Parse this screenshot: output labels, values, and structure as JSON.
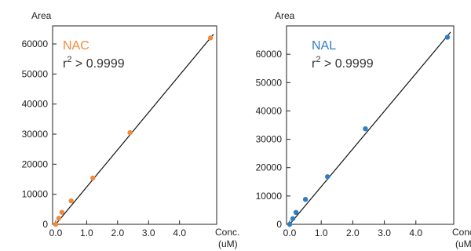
{
  "chart_data": [
    {
      "type": "scatter",
      "title": "",
      "xlabel": "Conc.",
      "xunit": "(uM)",
      "ylabel": "Area",
      "xlim": [
        -0.1,
        5.2
      ],
      "ylim": [
        0,
        66000
      ],
      "xticks": [
        "0.0",
        "1.0",
        "2.0",
        "3.0",
        "4.0"
      ],
      "xtick_values": [
        0,
        1,
        2,
        3,
        4
      ],
      "yticks": [
        "0",
        "10000",
        "20000",
        "30000",
        "40000",
        "50000",
        "60000"
      ],
      "ytick_values": [
        0,
        10000,
        20000,
        30000,
        40000,
        50000,
        60000
      ],
      "grid": false,
      "fit_line": {
        "slope": 12400,
        "intercept": 0,
        "x_range": [
          0,
          5.0
        ]
      },
      "annotation_label": "NAC",
      "annotation_r2_base": "r",
      "annotation_r2_sup": "2",
      "annotation_r2_rest": " > 0.9999",
      "series": [
        {
          "color": "#f08a3c",
          "x": [
            0.0,
            0.1,
            0.2,
            0.5,
            1.2,
            2.4,
            5.0
          ],
          "y": [
            0,
            2000,
            4000,
            7800,
            15400,
            30500,
            62000
          ]
        }
      ]
    },
    {
      "type": "scatter",
      "title": "",
      "xlabel": "Conc.",
      "xunit": "(uM)",
      "ylabel": "Area",
      "xlim": [
        -0.1,
        5.2
      ],
      "ylim": [
        0,
        70000
      ],
      "xticks": [
        "0.0",
        "1.0",
        "2.0",
        "3.0",
        "4.0"
      ],
      "xtick_values": [
        0,
        1,
        2,
        3,
        4
      ],
      "yticks": [
        "0",
        "10000",
        "20000",
        "30000",
        "40000",
        "50000",
        "60000"
      ],
      "ytick_values": [
        0,
        10000,
        20000,
        30000,
        40000,
        50000,
        60000
      ],
      "grid": false,
      "fit_line": {
        "slope": 13300,
        "intercept": 0,
        "x_range": [
          0,
          5.0
        ]
      },
      "annotation_label": "NAL",
      "annotation_r2_base": "r",
      "annotation_r2_sup": "2",
      "annotation_r2_rest": " > 0.9999",
      "series": [
        {
          "color": "#2f7ec1",
          "x": [
            0.0,
            0.1,
            0.2,
            0.5,
            1.2,
            2.4,
            5.0
          ],
          "y": [
            0,
            2000,
            4200,
            8800,
            16800,
            33700,
            66000
          ]
        }
      ]
    }
  ]
}
